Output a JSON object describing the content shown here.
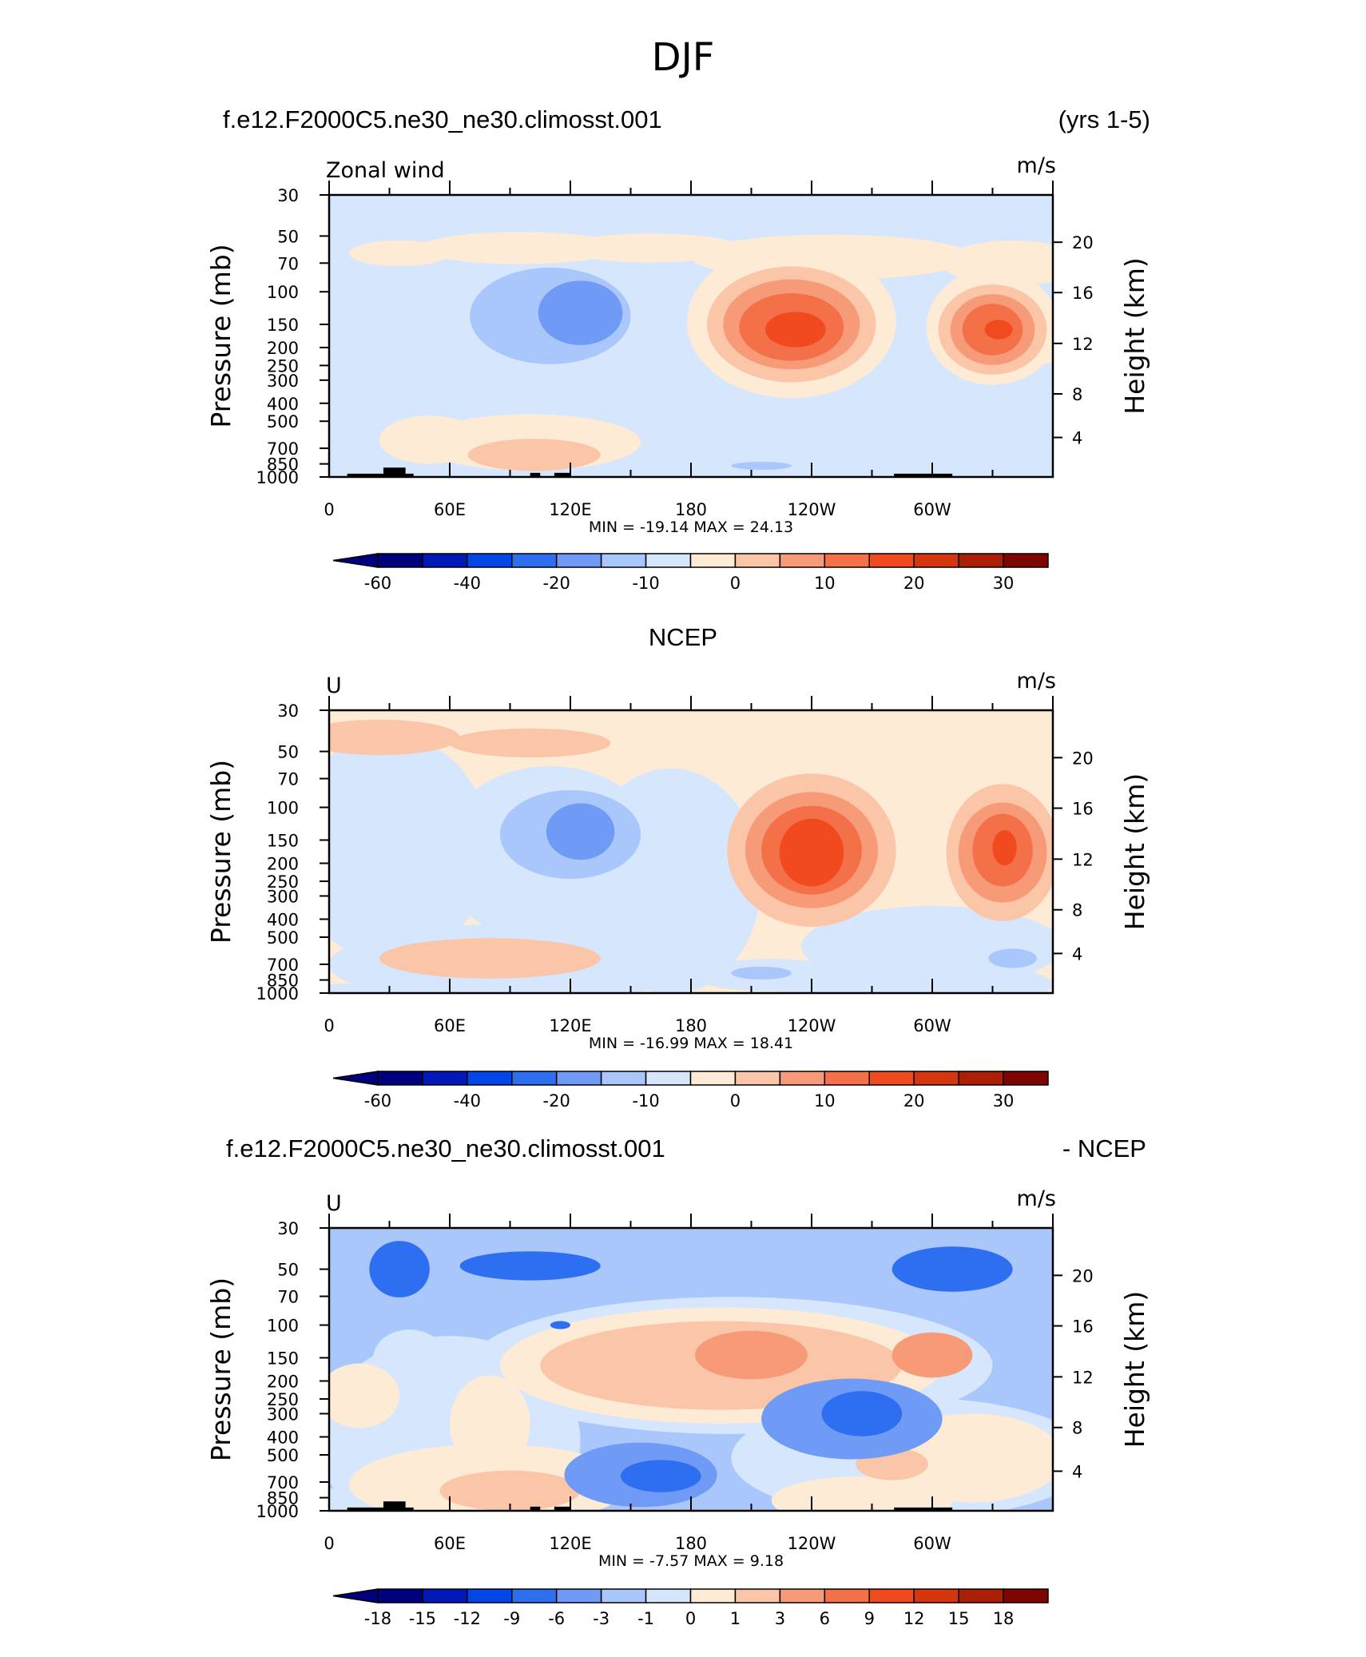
{
  "page": {
    "title": "DJF"
  },
  "chart_data": [
    {
      "type": "heatmap",
      "subtype": "filled contour, pressure-longitude cross section",
      "title_left": "f.e12.F2000C5.ne30_ne30.climosst.001",
      "title_right": "(yrs 1-5)",
      "title_center": "",
      "variable_label": "Zonal wind",
      "units": "m/s",
      "ylabel": "Pressure (mb)",
      "ylabel_right": "Height (km)",
      "x_ticks": [
        "0",
        "60E",
        "120E",
        "180",
        "120W",
        "60W"
      ],
      "y_ticks": [
        "30",
        "50",
        "70",
        "100",
        "150",
        "200",
        "250",
        "300",
        "400",
        "500",
        "700",
        "850",
        "1000"
      ],
      "right_ticks": [
        "20",
        "16",
        "12",
        "8",
        "4"
      ],
      "stats_text": "MIN =  -19.14   MAX =   24.13",
      "colorbar_labels": [
        "-60",
        "-40",
        "-20",
        "-10",
        "0",
        "10",
        "20",
        "30"
      ],
      "colorbar_label_bins": [
        1,
        3,
        5,
        7,
        9,
        11,
        13,
        15
      ],
      "background_level": 6,
      "blobs": [
        {
          "lon": 355,
          "p": 185,
          "rl": 15,
          "rp": 0.28,
          "lev": 7
        },
        {
          "lon": 35,
          "p": 62,
          "rl": 25,
          "rp": 0.16,
          "lev": 7
        },
        {
          "lon": 95,
          "p": 58,
          "rl": 50,
          "rp": 0.2,
          "lev": 7
        },
        {
          "lon": 160,
          "p": 58,
          "rl": 45,
          "rp": 0.18,
          "lev": 7
        },
        {
          "lon": 250,
          "p": 65,
          "rl": 70,
          "rp": 0.28,
          "lev": 7
        },
        {
          "lon": 340,
          "p": 70,
          "rl": 35,
          "rp": 0.28,
          "lev": 7
        },
        {
          "lon": 230,
          "p": 145,
          "rl": 52,
          "rp": 0.95,
          "lev": 7
        },
        {
          "lon": 330,
          "p": 155,
          "rl": 33,
          "rp": 0.72,
          "lev": 7
        },
        {
          "lon": 230,
          "p": 150,
          "rl": 42,
          "rp": 0.72,
          "lev": 8
        },
        {
          "lon": 330,
          "p": 160,
          "rl": 27,
          "rp": 0.56,
          "lev": 8
        },
        {
          "lon": 230,
          "p": 150,
          "rl": 34,
          "rp": 0.56,
          "lev": 9
        },
        {
          "lon": 330,
          "p": 160,
          "rl": 21,
          "rp": 0.44,
          "lev": 9
        },
        {
          "lon": 230,
          "p": 155,
          "rl": 26,
          "rp": 0.42,
          "lev": 10
        },
        {
          "lon": 330,
          "p": 160,
          "rl": 15,
          "rp": 0.32,
          "lev": 10
        },
        {
          "lon": 232,
          "p": 160,
          "rl": 15,
          "rp": 0.22,
          "lev": 11
        },
        {
          "lon": 333,
          "p": 160,
          "rl": 7,
          "rp": 0.12,
          "lev": 11
        },
        {
          "lon": 110,
          "p": 135,
          "rl": 40,
          "rp": 0.6,
          "lev": 5
        },
        {
          "lon": 125,
          "p": 130,
          "rl": 21,
          "rp": 0.4,
          "lev": 4
        },
        {
          "lon": 50,
          "p": 630,
          "rl": 25,
          "rp": 0.3,
          "lev": 7
        },
        {
          "lon": 100,
          "p": 650,
          "rl": 55,
          "rp": 0.35,
          "lev": 7
        },
        {
          "lon": 102,
          "p": 760,
          "rl": 33,
          "rp": 0.2,
          "lev": 8
        },
        {
          "lon": 215,
          "p": 870,
          "rl": 15,
          "rp": 0.05,
          "lev": 5
        }
      ],
      "topography": [
        {
          "lon0": 9,
          "lon1": 42,
          "p": 960
        },
        {
          "lon0": 27,
          "lon1": 38,
          "p": 890
        },
        {
          "lon0": 100,
          "lon1": 105,
          "p": 950
        },
        {
          "lon0": 112,
          "lon1": 120,
          "p": 950
        },
        {
          "lon0": 281,
          "lon1": 310,
          "p": 960
        }
      ]
    },
    {
      "type": "heatmap",
      "subtype": "filled contour, pressure-longitude cross section",
      "title_left": "",
      "title_right": "",
      "title_center": "NCEP",
      "variable_label": "U",
      "units": "m/s",
      "ylabel": "Pressure (mb)",
      "ylabel_right": "Height (km)",
      "x_ticks": [
        "0",
        "60E",
        "120E",
        "180",
        "120W",
        "60W"
      ],
      "y_ticks": [
        "30",
        "50",
        "70",
        "100",
        "150",
        "200",
        "250",
        "300",
        "400",
        "500",
        "700",
        "850",
        "1000"
      ],
      "right_ticks": [
        "20",
        "16",
        "12",
        "8",
        "4"
      ],
      "stats_text": "MIN =  -16.99   MAX =   18.41",
      "colorbar_labels": [
        "-60",
        "-40",
        "-20",
        "-10",
        "0",
        "10",
        "20",
        "30"
      ],
      "colorbar_label_bins": [
        1,
        3,
        5,
        7,
        9,
        11,
        13,
        15
      ],
      "background_level": 7,
      "blobs": [
        {
          "lon": 30,
          "p": 165,
          "rl": 50,
          "rp": 1.4,
          "lev": 6
        },
        {
          "lon": 110,
          "p": 180,
          "rl": 55,
          "rp": 1.1,
          "lev": 6
        },
        {
          "lon": 170,
          "p": 250,
          "rl": 45,
          "rp": 1.4,
          "lev": 6
        },
        {
          "lon": 90,
          "p": 700,
          "rl": 90,
          "rp": 0.5,
          "lev": 6
        },
        {
          "lon": 300,
          "p": 560,
          "rl": 65,
          "rp": 0.5,
          "lev": 6
        },
        {
          "lon": 220,
          "p": 800,
          "rl": 40,
          "rp": 0.2,
          "lev": 6
        },
        {
          "lon": 10,
          "p": 960,
          "rl": 15,
          "rp": 0.08,
          "lev": 6
        },
        {
          "lon": 290,
          "p": 900,
          "rl": 70,
          "rp": 0.3,
          "lev": 6
        },
        {
          "lon": 120,
          "p": 140,
          "rl": 35,
          "rp": 0.55,
          "lev": 5
        },
        {
          "lon": 125,
          "p": 135,
          "rl": 17,
          "rp": 0.35,
          "lev": 4
        },
        {
          "lon": 340,
          "p": 650,
          "rl": 12,
          "rp": 0.12,
          "lev": 5
        },
        {
          "lon": 215,
          "p": 780,
          "rl": 15,
          "rp": 0.08,
          "lev": 5
        },
        {
          "lon": 25,
          "p": 42,
          "rl": 40,
          "rp": 0.22,
          "lev": 8
        },
        {
          "lon": 100,
          "p": 45,
          "rl": 40,
          "rp": 0.18,
          "lev": 8
        },
        {
          "lon": 80,
          "p": 650,
          "rl": 55,
          "rp": 0.25,
          "lev": 8
        },
        {
          "lon": 240,
          "p": 170,
          "rl": 42,
          "rp": 0.95,
          "lev": 8
        },
        {
          "lon": 335,
          "p": 175,
          "rl": 28,
          "rp": 0.85,
          "lev": 8
        },
        {
          "lon": 240,
          "p": 170,
          "rl": 33,
          "rp": 0.72,
          "lev": 9
        },
        {
          "lon": 335,
          "p": 175,
          "rl": 22,
          "rp": 0.62,
          "lev": 9
        },
        {
          "lon": 240,
          "p": 170,
          "rl": 25,
          "rp": 0.55,
          "lev": 10
        },
        {
          "lon": 335,
          "p": 170,
          "rl": 15,
          "rp": 0.45,
          "lev": 10
        },
        {
          "lon": 240,
          "p": 175,
          "rl": 16,
          "rp": 0.42,
          "lev": 11
        },
        {
          "lon": 336,
          "p": 165,
          "rl": 6,
          "rp": 0.22,
          "lev": 11
        }
      ],
      "topography": []
    },
    {
      "type": "heatmap",
      "subtype": "filled contour, pressure-longitude cross section (difference)",
      "title_left": "f.e12.F2000C5.ne30_ne30.climosst.001",
      "title_right": "- NCEP",
      "title_center": "",
      "variable_label": "U",
      "units": "m/s",
      "ylabel": "Pressure (mb)",
      "ylabel_right": "Height (km)",
      "x_ticks": [
        "0",
        "60E",
        "120E",
        "180",
        "120W",
        "60W"
      ],
      "y_ticks": [
        "30",
        "50",
        "70",
        "100",
        "150",
        "200",
        "250",
        "300",
        "400",
        "500",
        "700",
        "850",
        "1000"
      ],
      "right_ticks": [
        "20",
        "16",
        "12",
        "8",
        "4"
      ],
      "stats_text": "MIN =   -7.57   MAX =    9.18",
      "colorbar_labels": [
        "-18",
        "-15",
        "-12",
        "-9",
        "-6",
        "-3",
        "-1",
        "0",
        "1",
        "3",
        "6",
        "9",
        "12",
        "15",
        "18"
      ],
      "colorbar_label_bins": [
        1,
        2,
        3,
        4,
        5,
        6,
        7,
        8,
        9,
        10,
        11,
        12,
        13,
        14,
        15
      ],
      "background_level": 5,
      "blobs": [
        {
          "lon": 60,
          "p": 420,
          "rl": 65,
          "rp": 1.3,
          "lev": 6
        },
        {
          "lon": 40,
          "p": 150,
          "rl": 18,
          "rp": 0.35,
          "lev": 6
        },
        {
          "lon": 290,
          "p": 520,
          "rl": 90,
          "rp": 0.75,
          "lev": 6
        },
        {
          "lon": 200,
          "p": 165,
          "rl": 130,
          "rp": 0.85,
          "lev": 6
        },
        {
          "lon": 30,
          "p": 870,
          "rl": 40,
          "rp": 0.2,
          "lev": 6
        },
        {
          "lon": 80,
          "p": 720,
          "rl": 70,
          "rp": 0.5,
          "lev": 7
        },
        {
          "lon": 80,
          "p": 340,
          "rl": 20,
          "rp": 0.6,
          "lev": 7
        },
        {
          "lon": 15,
          "p": 240,
          "rl": 20,
          "rp": 0.4,
          "lev": 7
        },
        {
          "lon": 195,
          "p": 165,
          "rl": 110,
          "rp": 0.72,
          "lev": 7
        },
        {
          "lon": 320,
          "p": 520,
          "rl": 45,
          "rp": 0.55,
          "lev": 7
        },
        {
          "lon": 265,
          "p": 880,
          "rl": 45,
          "rp": 0.3,
          "lev": 7
        },
        {
          "lon": 195,
          "p": 165,
          "rl": 90,
          "rp": 0.55,
          "lev": 8
        },
        {
          "lon": 280,
          "p": 560,
          "rl": 18,
          "rp": 0.2,
          "lev": 8
        },
        {
          "lon": 90,
          "p": 780,
          "rl": 35,
          "rp": 0.25,
          "lev": 8
        },
        {
          "lon": 210,
          "p": 145,
          "rl": 28,
          "rp": 0.3,
          "lev": 9
        },
        {
          "lon": 300,
          "p": 145,
          "rl": 20,
          "rp": 0.28,
          "lev": 9
        },
        {
          "lon": 35,
          "p": 50,
          "rl": 15,
          "rp": 0.35,
          "lev": 3
        },
        {
          "lon": 100,
          "p": 48,
          "rl": 35,
          "rp": 0.18,
          "lev": 3
        },
        {
          "lon": 310,
          "p": 50,
          "rl": 30,
          "rp": 0.28,
          "lev": 3
        },
        {
          "lon": 155,
          "p": 640,
          "rl": 38,
          "rp": 0.4,
          "lev": 4
        },
        {
          "lon": 260,
          "p": 320,
          "rl": 45,
          "rp": 0.5,
          "lev": 4
        },
        {
          "lon": 165,
          "p": 650,
          "rl": 20,
          "rp": 0.2,
          "lev": 3
        },
        {
          "lon": 265,
          "p": 300,
          "rl": 20,
          "rp": 0.28,
          "lev": 3
        },
        {
          "lon": 115,
          "p": 100,
          "rl": 5,
          "rp": 0.05,
          "lev": 3
        }
      ],
      "topography": [
        {
          "lon0": 9,
          "lon1": 42,
          "p": 960
        },
        {
          "lon0": 27,
          "lon1": 38,
          "p": 890
        },
        {
          "lon0": 100,
          "lon1": 105,
          "p": 950
        },
        {
          "lon0": 112,
          "lon1": 120,
          "p": 950
        },
        {
          "lon0": 281,
          "lon1": 310,
          "p": 960
        }
      ]
    }
  ],
  "palette": [
    "#00007f",
    "#0018b8",
    "#0046e8",
    "#2e6ff1",
    "#6f9bf6",
    "#a9c7fb",
    "#d5e6fd",
    "#feebd6",
    "#fbc5a8",
    "#f79a78",
    "#f37049",
    "#f24a1f",
    "#d5360d",
    "#ac1f05",
    "#7e0500"
  ]
}
